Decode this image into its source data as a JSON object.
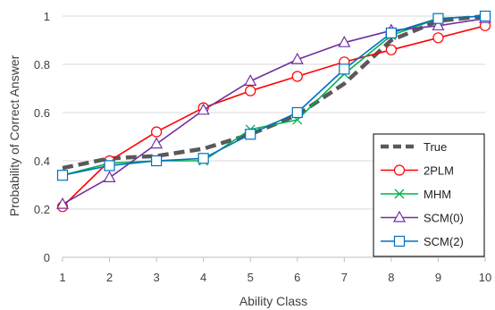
{
  "chart_data": {
    "type": "line",
    "title": "",
    "xlabel": "Ability Class",
    "ylabel": "Probability of Correct Answer",
    "categories": [
      "1",
      "2",
      "3",
      "4",
      "5",
      "6",
      "7",
      "8",
      "9",
      "10"
    ],
    "x": [
      1,
      2,
      3,
      4,
      5,
      6,
      7,
      8,
      9,
      10
    ],
    "xlim": [
      1,
      10
    ],
    "ylim": [
      0,
      1
    ],
    "yticks": [
      "0",
      "0.2",
      "0.4",
      "0.6",
      "0.8",
      "1"
    ],
    "grid": "horizontal",
    "legend_position": "bottom-right",
    "series": [
      {
        "name": "True",
        "color": "#595959",
        "marker": "none",
        "dashed": true,
        "values": [
          0.37,
          0.41,
          0.42,
          0.45,
          0.51,
          0.59,
          0.72,
          0.9,
          0.98,
          1.0
        ]
      },
      {
        "name": "2PLM",
        "color": "#ff0000",
        "marker": "circle",
        "values": [
          0.21,
          0.4,
          0.52,
          0.62,
          0.69,
          0.75,
          0.81,
          0.86,
          0.91,
          0.96
        ]
      },
      {
        "name": "MHM",
        "color": "#00b050",
        "marker": "x",
        "values": [
          0.34,
          0.39,
          0.4,
          0.4,
          0.53,
          0.57,
          0.76,
          0.92,
          0.99,
          1.0
        ]
      },
      {
        "name": "SCM(0)",
        "color": "#7030a0",
        "marker": "triangle",
        "values": [
          0.22,
          0.33,
          0.47,
          0.61,
          0.73,
          0.82,
          0.89,
          0.94,
          0.96,
          0.99
        ]
      },
      {
        "name": "SCM(2)",
        "color": "#0070c0",
        "marker": "square",
        "values": [
          0.34,
          0.38,
          0.4,
          0.41,
          0.51,
          0.6,
          0.78,
          0.93,
          0.99,
          1.0
        ]
      }
    ]
  }
}
